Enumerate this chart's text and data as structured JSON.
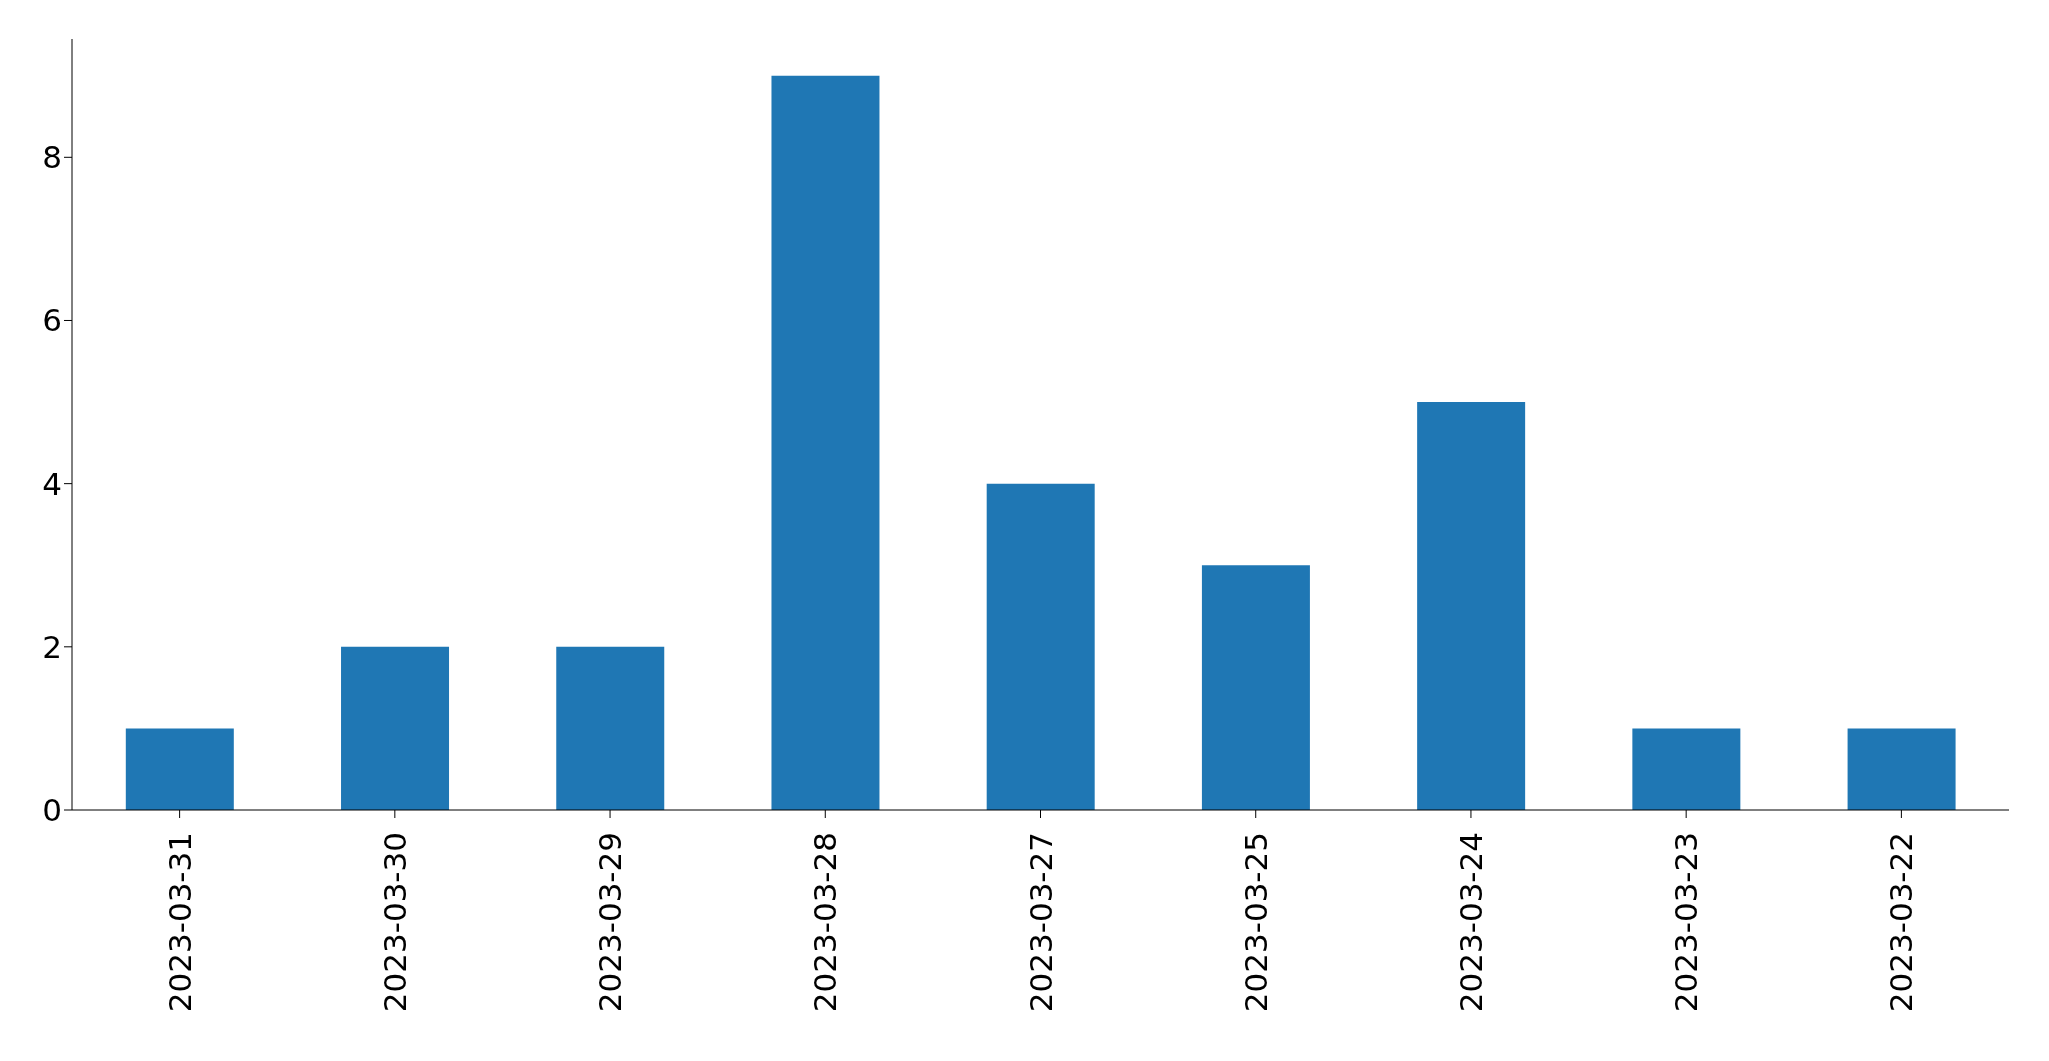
{
  "chart_data": {
    "type": "bar",
    "categories": [
      "2023-03-31",
      "2023-03-30",
      "2023-03-29",
      "2023-03-28",
      "2023-03-27",
      "2023-03-25",
      "2023-03-24",
      "2023-03-23",
      "2023-03-22"
    ],
    "values": [
      1,
      2,
      2,
      9,
      4,
      3,
      5,
      1,
      1
    ],
    "color": "#1f77b4",
    "ylim": [
      0,
      9.45
    ],
    "yticks": [
      0,
      2,
      4,
      6,
      8
    ],
    "grid": false,
    "legend": false
  }
}
